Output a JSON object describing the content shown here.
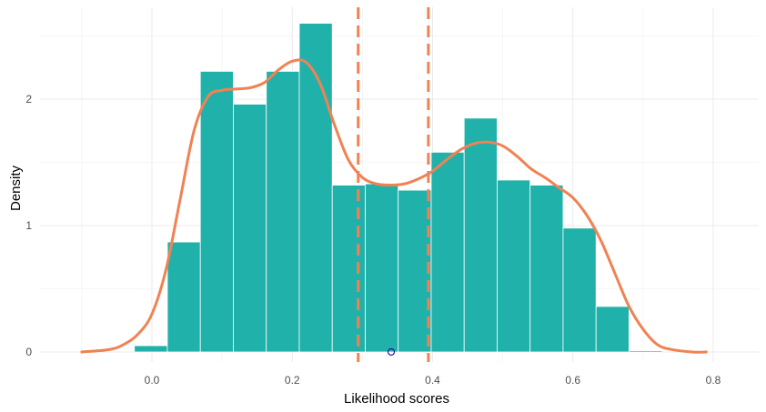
{
  "chart_data": {
    "type": "bar",
    "subtype": "histogram-with-density",
    "xlabel": "Likelihood scores",
    "ylabel": "Density",
    "xlim": [
      -0.1,
      0.8
    ],
    "ylim": [
      0,
      2.6
    ],
    "x_ticks": [
      0.0,
      0.2,
      0.4,
      0.6,
      0.8
    ],
    "x_tick_labels": [
      "0.0",
      "0.2",
      "0.4",
      "0.6",
      "0.8"
    ],
    "y_ticks": [
      0,
      1,
      2
    ],
    "y_tick_labels": [
      "0",
      "1",
      "2"
    ],
    "grid": true,
    "legend": "none",
    "bin_width": 0.047,
    "bins": [
      {
        "x0": -0.025,
        "x1": 0.022,
        "value": 0.05
      },
      {
        "x0": 0.022,
        "x1": 0.069,
        "value": 0.87
      },
      {
        "x0": 0.069,
        "x1": 0.116,
        "value": 2.22
      },
      {
        "x0": 0.116,
        "x1": 0.163,
        "value": 1.96
      },
      {
        "x0": 0.163,
        "x1": 0.21,
        "value": 2.22
      },
      {
        "x0": 0.21,
        "x1": 0.257,
        "value": 2.6
      },
      {
        "x0": 0.257,
        "x1": 0.304,
        "value": 1.32
      },
      {
        "x0": 0.304,
        "x1": 0.351,
        "value": 1.33
      },
      {
        "x0": 0.351,
        "x1": 0.398,
        "value": 1.28
      },
      {
        "x0": 0.398,
        "x1": 0.445,
        "value": 1.58
      },
      {
        "x0": 0.445,
        "x1": 0.492,
        "value": 1.85
      },
      {
        "x0": 0.492,
        "x1": 0.539,
        "value": 1.36
      },
      {
        "x0": 0.539,
        "x1": 0.586,
        "value": 1.32
      },
      {
        "x0": 0.586,
        "x1": 0.633,
        "value": 0.98
      },
      {
        "x0": 0.633,
        "x1": 0.68,
        "value": 0.36
      },
      {
        "x0": 0.68,
        "x1": 0.727,
        "value": 0.01
      }
    ],
    "density_curve": {
      "x": [
        -0.1,
        -0.06,
        -0.04,
        -0.02,
        0.0,
        0.02,
        0.04,
        0.06,
        0.08,
        0.1,
        0.12,
        0.14,
        0.16,
        0.18,
        0.2,
        0.22,
        0.24,
        0.26,
        0.28,
        0.3,
        0.32,
        0.34,
        0.36,
        0.38,
        0.4,
        0.42,
        0.44,
        0.46,
        0.48,
        0.5,
        0.52,
        0.54,
        0.56,
        0.58,
        0.6,
        0.62,
        0.64,
        0.66,
        0.68,
        0.7,
        0.72,
        0.74,
        0.77,
        0.79
      ],
      "y": [
        0.0,
        0.02,
        0.06,
        0.14,
        0.3,
        0.65,
        1.2,
        1.75,
        2.02,
        2.07,
        2.08,
        2.09,
        2.13,
        2.23,
        2.3,
        2.29,
        2.12,
        1.8,
        1.52,
        1.38,
        1.33,
        1.32,
        1.33,
        1.37,
        1.43,
        1.52,
        1.6,
        1.65,
        1.66,
        1.63,
        1.55,
        1.45,
        1.38,
        1.3,
        1.22,
        1.08,
        0.88,
        0.62,
        0.36,
        0.18,
        0.06,
        0.02,
        0.0,
        0.0
      ],
      "color": "#f08253"
    },
    "vlines": [
      0.294,
      0.394
    ],
    "vline_color": "#f08253",
    "marker_point": {
      "x": 0.341,
      "y": 0.0,
      "color": "#1a1aa6"
    },
    "bar_color": "#20b2aa"
  }
}
